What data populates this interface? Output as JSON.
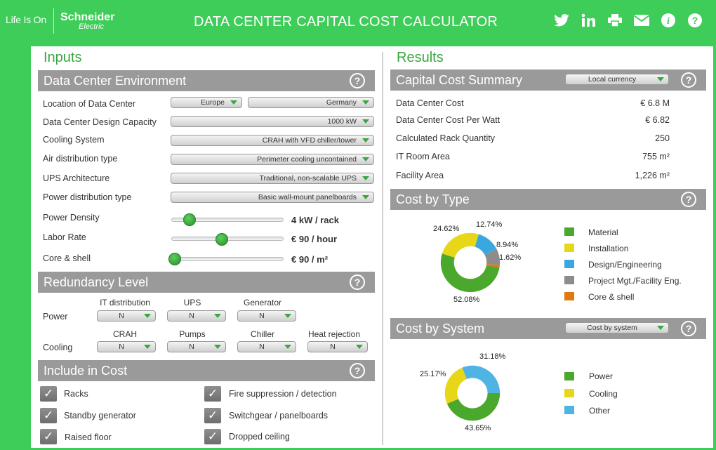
{
  "header": {
    "tagline": "Life Is On",
    "brand": "Schneider",
    "brand_sub": "Electric",
    "title": "DATA CENTER CAPITAL COST CALCULATOR",
    "icons": [
      "twitter-icon",
      "linkedin-icon",
      "print-icon",
      "email-icon",
      "info-icon",
      "help-icon"
    ]
  },
  "inputs": {
    "heading": "Inputs",
    "env": {
      "title": "Data Center Environment",
      "location_label": "Location of Data Center",
      "region": "Europe",
      "country": "Germany",
      "capacity_label": "Data Center Design Capacity",
      "capacity": "1000 kW",
      "cooling_label": "Cooling System",
      "cooling": "CRAH with VFD chiller/tower",
      "air_label": "Air distribution type",
      "air": "Perimeter cooling uncontained",
      "ups_label": "UPS Architecture",
      "ups": "Traditional, non-scalable UPS",
      "power_dist_label": "Power distribution type",
      "power_dist": "Basic wall-mount panelboards",
      "density_label": "Power Density",
      "density": "4 kW / rack",
      "density_level": 0.15,
      "labor_label": "Labor Rate",
      "labor": "€ 90 / hour",
      "labor_level": 0.47,
      "core_label": "Core & shell",
      "core": "€ 90 / m²",
      "core_level": 0.0
    },
    "redundancy": {
      "title": "Redundancy Level",
      "power_label": "Power",
      "cooling_label": "Cooling",
      "power_cols": [
        "IT distribution",
        "UPS",
        "Generator"
      ],
      "power_vals": [
        "N",
        "N",
        "N"
      ],
      "cooling_cols": [
        "CRAH",
        "Pumps",
        "Chiller",
        "Heat rejection"
      ],
      "cooling_vals": [
        "N",
        "N",
        "N",
        "N"
      ]
    },
    "include": {
      "title": "Include in Cost",
      "items": [
        "Racks",
        "Standby generator",
        "Raised floor",
        "Fire suppression / detection",
        "Switchgear / panelboards",
        "Dropped ceiling"
      ],
      "check": "✓"
    }
  },
  "results": {
    "heading": "Results",
    "summary": {
      "title": "Capital Cost Summary",
      "currency": "Local currency",
      "rows": [
        {
          "label": "Data Center Cost",
          "value": "€ 6.8 M"
        },
        {
          "label": "Data Center Cost Per Watt",
          "value": "€ 6.82"
        },
        {
          "label": "Calculated Rack Quantity",
          "value": "250"
        },
        {
          "label": "IT Room Area",
          "value": "755 m²"
        },
        {
          "label": "Facility Area",
          "value": "1,226 m²"
        }
      ]
    },
    "by_type": {
      "title": "Cost by Type",
      "legend": [
        "Material",
        "Installation",
        "Design/Engineering",
        "Project Mgt./Facility Eng.",
        "Core & shell"
      ],
      "colors": [
        "#4aa82d",
        "#e8d619",
        "#3aa8e0",
        "#8c8c8c",
        "#e07a10"
      ],
      "values": [
        52.08,
        24.62,
        12.74,
        8.94,
        1.62
      ],
      "labels": [
        "52.08%",
        "24.62%",
        "12.74%",
        "8.94%",
        "1.62%"
      ]
    },
    "by_system": {
      "title": "Cost by System",
      "selector": "Cost by system",
      "legend": [
        "Power",
        "Cooling",
        "Other"
      ],
      "colors": [
        "#4aa82d",
        "#e8d619",
        "#4fb4e4"
      ],
      "values": [
        43.65,
        25.17,
        31.18
      ],
      "labels": [
        "43.65%",
        "25.17%",
        "31.18%"
      ]
    },
    "help": "?"
  }
}
